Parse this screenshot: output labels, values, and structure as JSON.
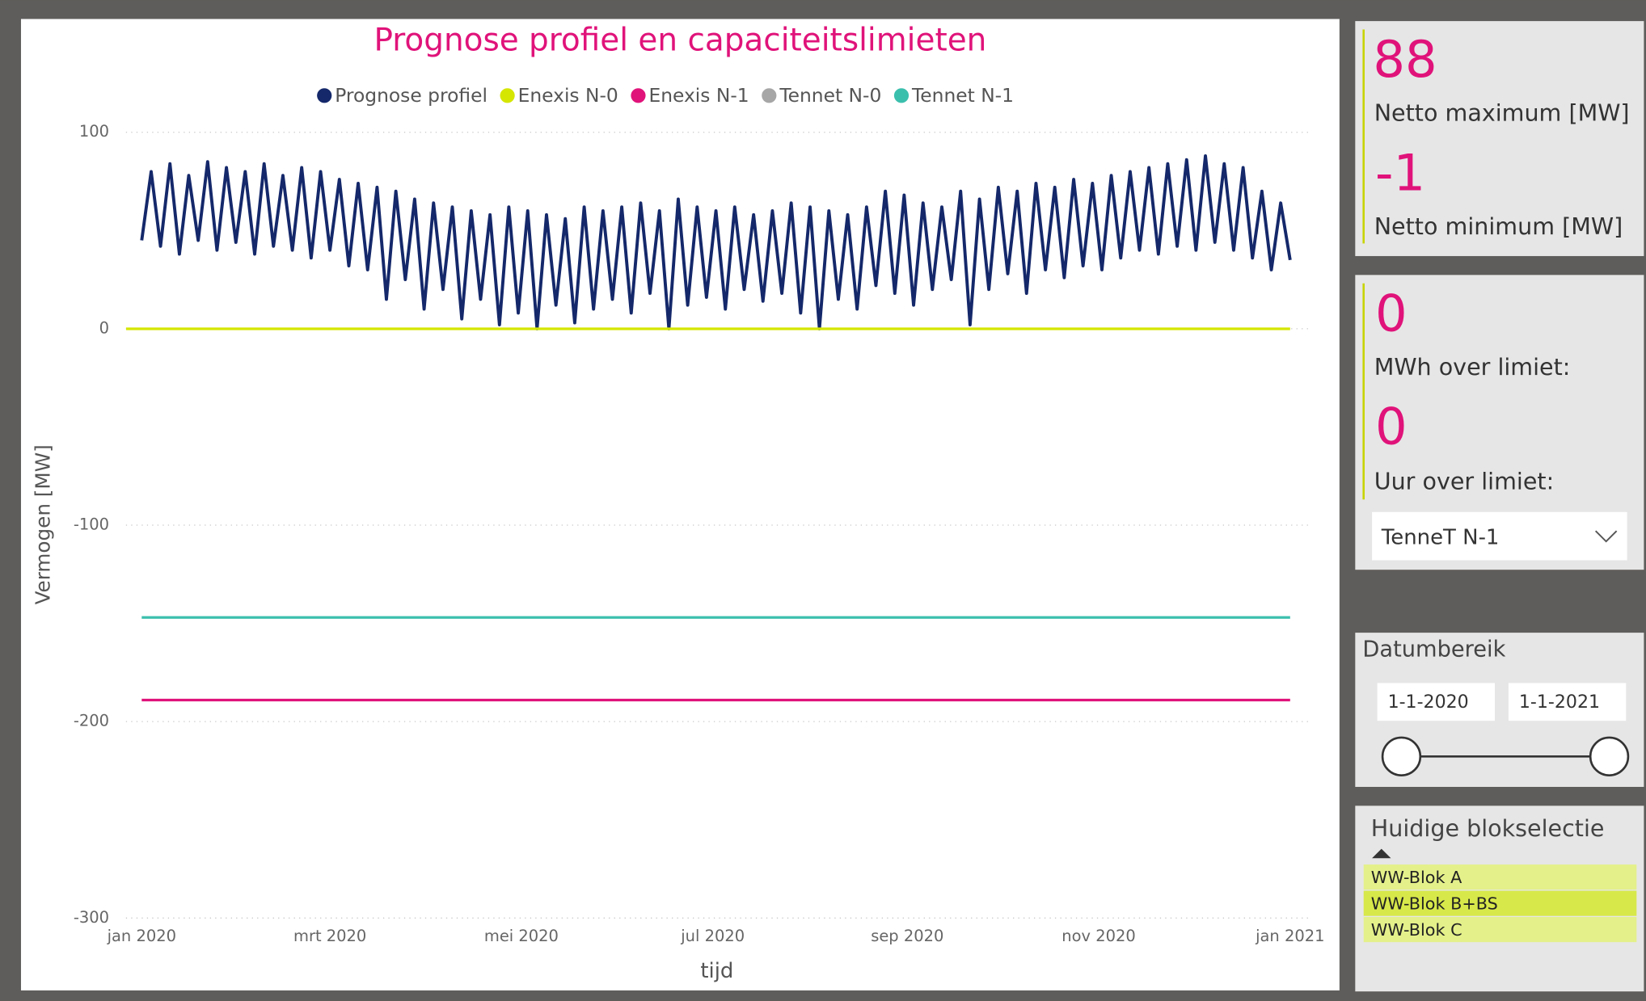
{
  "chart_data": {
    "type": "line",
    "title": "Prognose profiel en capaciteitslimieten",
    "x_label": "tijd",
    "y_label": "Vermogen [MW]",
    "xlim": [
      0,
      366
    ],
    "xticks": [
      {
        "value": 0,
        "label": "jan 2020"
      },
      {
        "value": 60,
        "label": "mrt 2020"
      },
      {
        "value": 121,
        "label": "mei 2020"
      },
      {
        "value": 182,
        "label": "jul 2020"
      },
      {
        "value": 244,
        "label": "sep 2020"
      },
      {
        "value": 305,
        "label": "nov 2020"
      },
      {
        "value": 366,
        "label": "jan 2021"
      }
    ],
    "ylim": [
      -300,
      100
    ],
    "yticks": [
      -300,
      -200,
      -100,
      0,
      100
    ],
    "grid": true,
    "series": [
      {
        "name": "Prognose profiel",
        "color": "#14286a",
        "x": [
          0,
          3,
          6,
          9,
          12,
          15,
          18,
          21,
          24,
          27,
          30,
          33,
          36,
          39,
          42,
          45,
          48,
          51,
          54,
          57,
          60,
          63,
          66,
          69,
          72,
          75,
          78,
          81,
          84,
          87,
          90,
          93,
          96,
          99,
          102,
          105,
          108,
          111,
          114,
          117,
          120,
          123,
          126,
          129,
          132,
          135,
          138,
          141,
          144,
          147,
          150,
          153,
          156,
          159,
          162,
          165,
          168,
          171,
          174,
          177,
          180,
          183,
          186,
          189,
          192,
          195,
          198,
          201,
          204,
          207,
          210,
          213,
          216,
          219,
          222,
          225,
          228,
          231,
          234,
          237,
          240,
          243,
          246,
          249,
          252,
          255,
          258,
          261,
          264,
          267,
          270,
          273,
          276,
          279,
          282,
          285,
          288,
          291,
          294,
          297,
          300,
          303,
          306,
          309,
          312,
          315,
          318,
          321,
          324,
          327,
          330,
          333,
          336,
          339,
          342,
          345,
          348,
          351,
          354,
          357,
          360,
          363,
          366
        ],
        "values": [
          45,
          80,
          42,
          84,
          38,
          78,
          45,
          85,
          40,
          82,
          44,
          80,
          38,
          84,
          42,
          78,
          40,
          82,
          36,
          80,
          40,
          76,
          32,
          74,
          30,
          72,
          15,
          70,
          25,
          66,
          10,
          64,
          20,
          62,
          5,
          60,
          15,
          58,
          2,
          62,
          8,
          60,
          0,
          58,
          12,
          56,
          3,
          62,
          10,
          60,
          15,
          62,
          8,
          64,
          18,
          60,
          0,
          66,
          12,
          62,
          16,
          60,
          10,
          62,
          20,
          58,
          14,
          60,
          18,
          64,
          8,
          62,
          0,
          60,
          15,
          58,
          10,
          62,
          22,
          70,
          18,
          68,
          12,
          64,
          20,
          62,
          25,
          70,
          2,
          66,
          20,
          72,
          28,
          70,
          18,
          74,
          30,
          72,
          26,
          76,
          32,
          74,
          30,
          78,
          36,
          80,
          40,
          82,
          38,
          84,
          42,
          86,
          40,
          88,
          44,
          84,
          40,
          82,
          36,
          70,
          30,
          64,
          35
        ]
      },
      {
        "name": "Enexis N-0",
        "color": "#d5e600",
        "x": [
          -5,
          366
        ],
        "values": [
          0,
          0
        ]
      },
      {
        "name": "Enexis N-1",
        "color": "#e0137a",
        "x": [
          0,
          366
        ],
        "values": [
          -189,
          -189
        ]
      },
      {
        "name": "Tennet N-0",
        "color": "#a6a6a6",
        "x": [
          0,
          366
        ],
        "values": [
          null,
          null
        ]
      },
      {
        "name": "Tennet N-1",
        "color": "#3bbfad",
        "x": [
          0,
          366
        ],
        "values": [
          -147,
          -147
        ]
      }
    ]
  },
  "kpi1": {
    "max_value": "88",
    "max_label": "Netto maximum [MW]",
    "min_value": "-1",
    "min_label": "Netto minimum [MW]"
  },
  "kpi2": {
    "mwh_value": "0",
    "mwh_label": "MWh over limiet:",
    "uur_value": "0",
    "uur_label": "Uur over limiet:",
    "dropdown": "TenneT N-1"
  },
  "date_range": {
    "title": "Datumbereik",
    "start": "1-1-2020",
    "end": "1-1-2021"
  },
  "block_selection": {
    "title": "Huidige blokselectie",
    "items": [
      "WW-Blok A",
      "WW-Blok B+BS",
      "WW-Blok C"
    ]
  }
}
